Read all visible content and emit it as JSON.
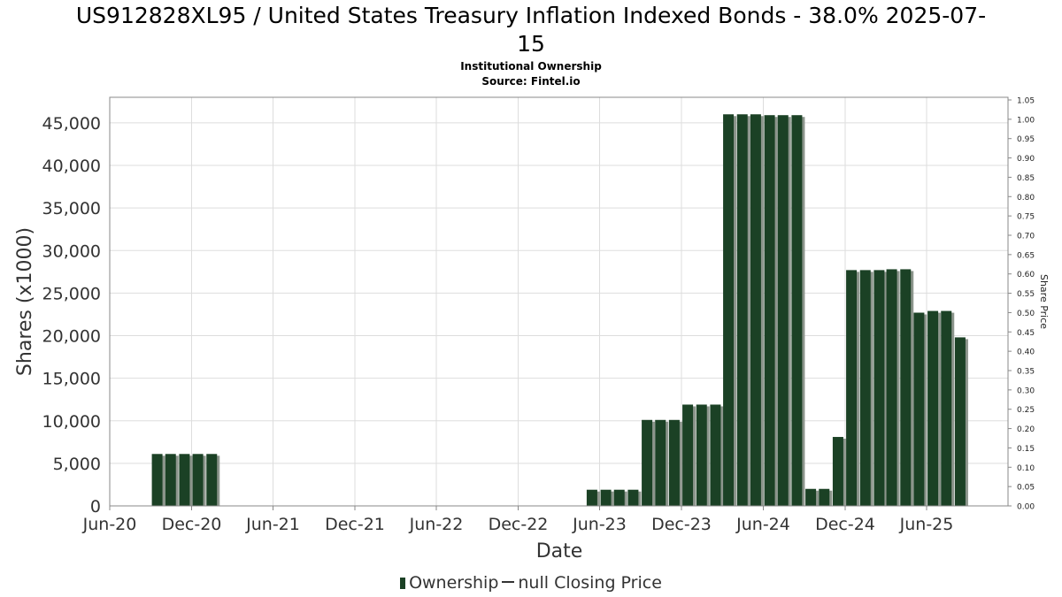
{
  "header": {
    "title_line1": "US912828XL95 / United States Treasury Inflation Indexed Bonds - 38.0% 2025-07-",
    "title_line2": "15",
    "subtitle1": "Institutional Ownership",
    "subtitle2": "Source: Fintel.io"
  },
  "legend": {
    "ownership_label": "Ownership",
    "price_label": "null Closing Price"
  },
  "colors": {
    "bar": "#1b4125",
    "bar_shadow": "#8c958c",
    "grid": "#dddddd",
    "axis": "#888888"
  },
  "chart_data": {
    "type": "bar",
    "xlabel": "Date",
    "ylabel": "Shares (x1000)",
    "y2label": "Share Price",
    "ylim": [
      0,
      48000
    ],
    "y2lim": [
      0,
      1.05
    ],
    "x_range": [
      "2020-06-01",
      "2025-11-30"
    ],
    "y_ticks": [
      0,
      5000,
      10000,
      15000,
      20000,
      25000,
      30000,
      35000,
      40000,
      45000
    ],
    "y_tick_labels": [
      "0",
      "5,000",
      "10,000",
      "15,000",
      "20,000",
      "25,000",
      "30,000",
      "35,000",
      "40,000",
      "45,000"
    ],
    "y2_tick_labels": [
      "0.00",
      "0.05",
      "0.10",
      "0.15",
      "0.20",
      "0.25",
      "0.30",
      "0.35",
      "0.40",
      "0.45",
      "0.50",
      "0.55",
      "0.60",
      "0.65",
      "0.70",
      "0.75",
      "0.80",
      "0.85",
      "0.90",
      "0.95",
      "1.00",
      "1.05"
    ],
    "x_ticks": [
      {
        "date": "2020-06-01",
        "label": "Jun-20"
      },
      {
        "date": "2020-12-01",
        "label": "Dec-20"
      },
      {
        "date": "2021-06-01",
        "label": "Jun-21"
      },
      {
        "date": "2021-12-01",
        "label": "Dec-21"
      },
      {
        "date": "2022-06-01",
        "label": "Jun-22"
      },
      {
        "date": "2022-12-01",
        "label": "Dec-22"
      },
      {
        "date": "2023-06-01",
        "label": "Jun-23"
      },
      {
        "date": "2023-12-01",
        "label": "Dec-23"
      },
      {
        "date": "2024-06-01",
        "label": "Jun-24"
      },
      {
        "date": "2024-12-01",
        "label": "Dec-24"
      },
      {
        "date": "2025-06-01",
        "label": "Jun-25"
      }
    ],
    "grid": true,
    "legend_position": "bottom",
    "series": [
      {
        "name": "Ownership",
        "points": [
          {
            "date": "2020-09-15",
            "value": 6100
          },
          {
            "date": "2020-10-15",
            "value": 6100
          },
          {
            "date": "2020-11-15",
            "value": 6100
          },
          {
            "date": "2020-12-15",
            "value": 6100
          },
          {
            "date": "2021-01-15",
            "value": 6100
          },
          {
            "date": "2023-05-15",
            "value": 1900
          },
          {
            "date": "2023-06-15",
            "value": 1900
          },
          {
            "date": "2023-07-15",
            "value": 1900
          },
          {
            "date": "2023-08-15",
            "value": 1900
          },
          {
            "date": "2023-09-15",
            "value": 10100
          },
          {
            "date": "2023-10-15",
            "value": 10100
          },
          {
            "date": "2023-11-15",
            "value": 10100
          },
          {
            "date": "2023-12-15",
            "value": 11900
          },
          {
            "date": "2024-01-15",
            "value": 11900
          },
          {
            "date": "2024-02-15",
            "value": 11900
          },
          {
            "date": "2024-03-15",
            "value": 46000
          },
          {
            "date": "2024-04-15",
            "value": 46000
          },
          {
            "date": "2024-05-15",
            "value": 46000
          },
          {
            "date": "2024-06-15",
            "value": 45900
          },
          {
            "date": "2024-07-15",
            "value": 45900
          },
          {
            "date": "2024-08-15",
            "value": 45900
          },
          {
            "date": "2024-09-15",
            "value": 2000
          },
          {
            "date": "2024-10-15",
            "value": 2000
          },
          {
            "date": "2024-11-15",
            "value": 8100
          },
          {
            "date": "2024-12-15",
            "value": 27700
          },
          {
            "date": "2025-01-15",
            "value": 27700
          },
          {
            "date": "2025-02-15",
            "value": 27700
          },
          {
            "date": "2025-03-15",
            "value": 27800
          },
          {
            "date": "2025-04-15",
            "value": 27800
          },
          {
            "date": "2025-05-15",
            "value": 22700
          },
          {
            "date": "2025-06-15",
            "value": 22900
          },
          {
            "date": "2025-07-15",
            "value": 22900
          },
          {
            "date": "2025-08-15",
            "value": 19800
          }
        ]
      }
    ]
  }
}
